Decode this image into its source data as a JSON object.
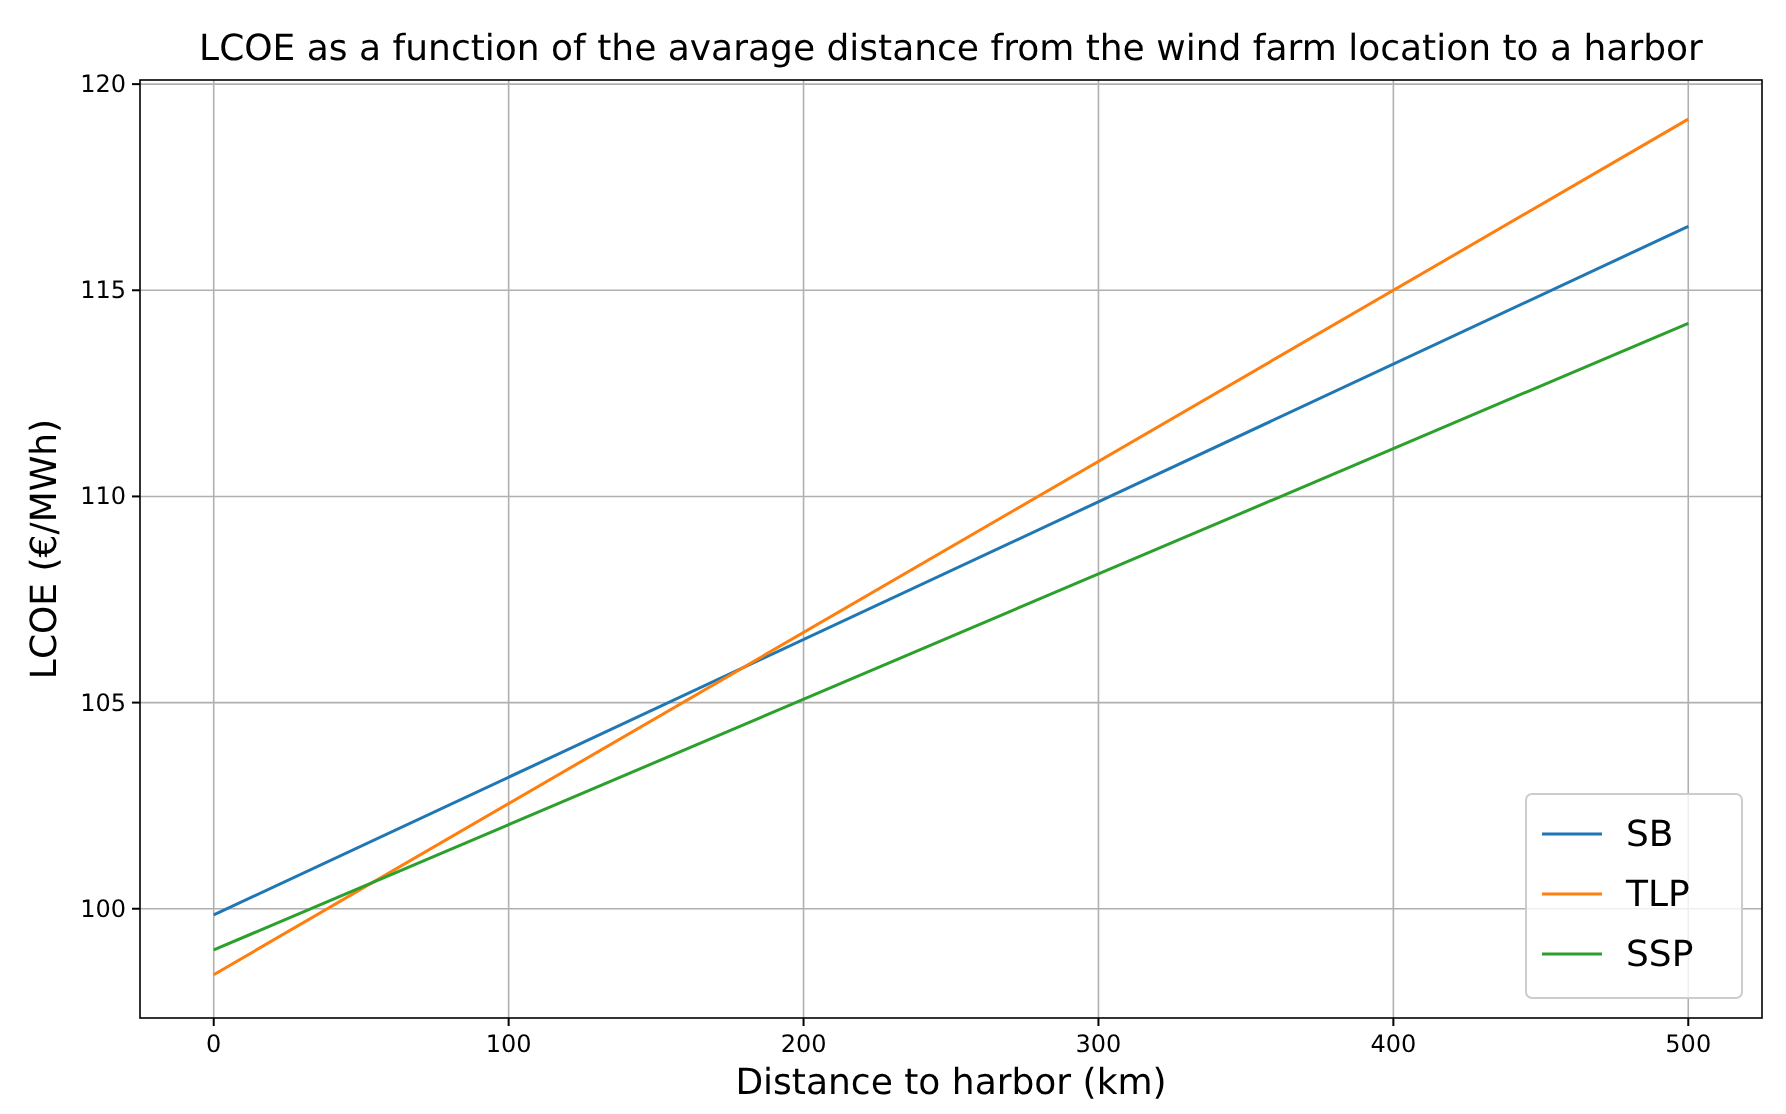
{
  "chart_data": {
    "type": "line",
    "title": "LCOE as a function of the avarage distance from the wind farm location to a harbor",
    "xlabel": "Distance to harbor (km)",
    "ylabel": "LCOE (€/MWh)",
    "x": [
      0,
      500
    ],
    "series": [
      {
        "name": "SB",
        "color": "#1f77b4",
        "values": [
          99.85,
          116.55
        ]
      },
      {
        "name": "TLP",
        "color": "#ff7f0e",
        "values": [
          98.4,
          119.15
        ]
      },
      {
        "name": "SSP",
        "color": "#2ca02c",
        "values": [
          99.0,
          114.2
        ]
      }
    ],
    "xlim": [
      -25,
      525
    ],
    "ylim": [
      97.35,
      120.1
    ],
    "xticks": [
      0,
      100,
      200,
      300,
      400,
      500
    ],
    "yticks": [
      100,
      105,
      110,
      115,
      120
    ],
    "grid": true,
    "legend": "bottom right",
    "marker": "none",
    "line_style": "solid"
  }
}
